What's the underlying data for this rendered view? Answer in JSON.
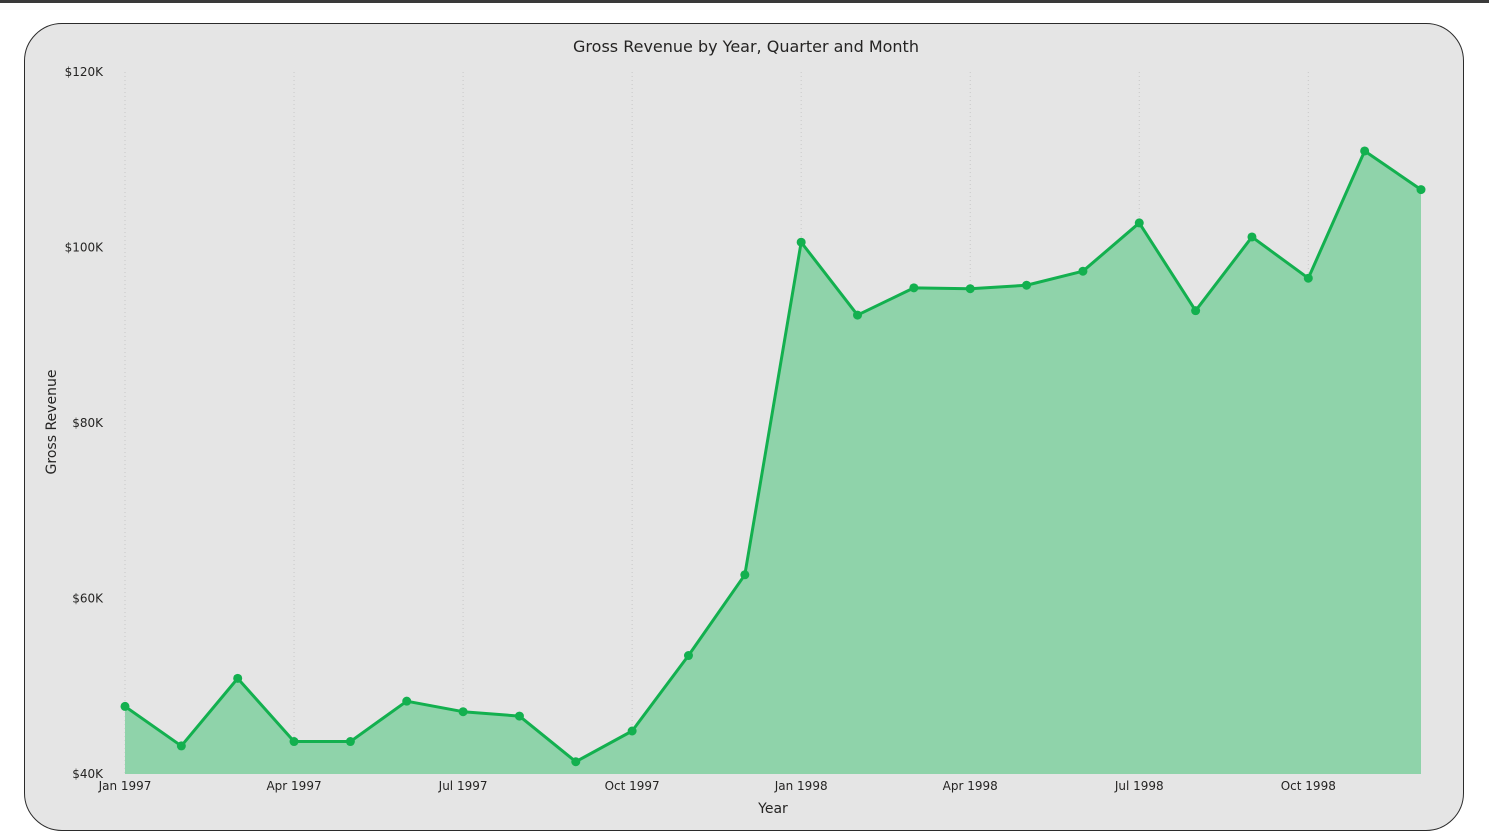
{
  "colors": {
    "line": "#13b04f",
    "area": "#8fd3aa",
    "background": "#e5e5e5",
    "gridline": "#c8c8c8"
  },
  "chart_data": {
    "type": "area",
    "title": "Gross Revenue by Year, Quarter and Month",
    "xlabel": "Year",
    "ylabel": "Gross Revenue",
    "ylim": [
      40000,
      120000
    ],
    "y_ticks": [
      {
        "value": 120000,
        "label": "$120K"
      },
      {
        "value": 100000,
        "label": "$100K"
      },
      {
        "value": 80000,
        "label": "$80K"
      },
      {
        "value": 60000,
        "label": "$60K"
      },
      {
        "value": 40000,
        "label": "$40K"
      }
    ],
    "x_tick_labels": [
      "Jan 1997",
      "Apr 1997",
      "Jul 1997",
      "Oct 1997",
      "Jan 1998",
      "Apr 1998",
      "Jul 1998",
      "Oct 1998"
    ],
    "x_tick_indices": [
      0,
      3,
      6,
      9,
      12,
      15,
      18,
      21
    ],
    "grid": "vertical dotted",
    "x": [
      "1997-01",
      "1997-02",
      "1997-03",
      "1997-04",
      "1997-05",
      "1997-06",
      "1997-07",
      "1997-08",
      "1997-09",
      "1997-10",
      "1997-11",
      "1997-12",
      "1998-01",
      "1998-02",
      "1998-03",
      "1998-04",
      "1998-05",
      "1998-06",
      "1998-07",
      "1998-08",
      "1998-09",
      "1998-10",
      "1998-11",
      "1998-12"
    ],
    "series": [
      {
        "values": [
          47700,
          43200,
          50900,
          43700,
          43700,
          48300,
          47100,
          46600,
          41400,
          44900,
          53500,
          62700,
          100600,
          92300,
          95400,
          95300,
          95700,
          97300,
          102800,
          92800,
          101200,
          96500,
          111000,
          106600
        ]
      }
    ]
  }
}
